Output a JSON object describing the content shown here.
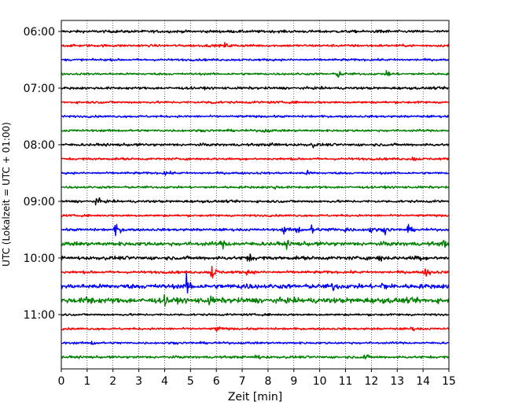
{
  "chart_data": {
    "type": "line",
    "title": "",
    "xlabel": "Zeit  [min]",
    "ylabel": "UTC (Lokalzeit = UTC + 01:00)",
    "xlim": [
      0,
      15
    ],
    "x_ticks": [
      0,
      1,
      2,
      3,
      4,
      5,
      6,
      7,
      8,
      9,
      10,
      11,
      12,
      13,
      14,
      15
    ],
    "x_tick_labels": [
      "0",
      "1",
      "2",
      "3",
      "4",
      "5",
      "6",
      "7",
      "8",
      "9",
      "10",
      "11",
      "12",
      "13",
      "14",
      "15"
    ],
    "y_tick_labels": [
      "06:00",
      "07:00",
      "08:00",
      "09:00",
      "10:00",
      "11:00"
    ],
    "grid": "vertical dotted",
    "colors": [
      "#000000",
      "#ff0000",
      "#0000ff",
      "#008000"
    ],
    "row_interval_minutes": 15,
    "traces": [
      {
        "start": "06:00",
        "color": "#000000",
        "amplitude": 0.3,
        "events": [
          {
            "x": 12.4,
            "amp": 0.6
          }
        ]
      },
      {
        "start": "06:15",
        "color": "#ff0000",
        "amplitude": 0.28,
        "events": [
          {
            "x": 6.3,
            "amp": 0.6
          }
        ]
      },
      {
        "start": "06:30",
        "color": "#0000ff",
        "amplitude": 0.24,
        "events": []
      },
      {
        "start": "06:45",
        "color": "#008000",
        "amplitude": 0.24,
        "events": [
          {
            "x": 10.7,
            "amp": 1.0
          },
          {
            "x": 12.6,
            "amp": 0.8
          }
        ]
      },
      {
        "start": "07:00",
        "color": "#000000",
        "amplitude": 0.28,
        "events": []
      },
      {
        "start": "07:15",
        "color": "#ff0000",
        "amplitude": 0.26,
        "events": [
          {
            "x": 5.8,
            "amp": 0.5
          }
        ]
      },
      {
        "start": "07:30",
        "color": "#0000ff",
        "amplitude": 0.24,
        "events": []
      },
      {
        "start": "07:45",
        "color": "#008000",
        "amplitude": 0.26,
        "events": [
          {
            "x": 7.8,
            "amp": 0.6
          }
        ]
      },
      {
        "start": "08:00",
        "color": "#000000",
        "amplitude": 0.3,
        "events": [
          {
            "x": 8.2,
            "amp": 0.7
          },
          {
            "x": 9.7,
            "amp": 0.5
          }
        ]
      },
      {
        "start": "08:15",
        "color": "#ff0000",
        "amplitude": 0.26,
        "events": [
          {
            "x": 13.6,
            "amp": 0.5
          }
        ]
      },
      {
        "start": "08:30",
        "color": "#0000ff",
        "amplitude": 0.24,
        "events": [
          {
            "x": 4.0,
            "amp": 0.6
          },
          {
            "x": 9.5,
            "amp": 0.5
          }
        ]
      },
      {
        "start": "08:45",
        "color": "#008000",
        "amplitude": 0.26,
        "events": [
          {
            "x": 8.2,
            "amp": 0.5
          }
        ]
      },
      {
        "start": "09:00",
        "color": "#000000",
        "amplitude": 0.28,
        "events": [
          {
            "x": 1.35,
            "amp": 1.0
          }
        ]
      },
      {
        "start": "09:15",
        "color": "#ff0000",
        "amplitude": 0.24,
        "events": []
      },
      {
        "start": "09:30",
        "color": "#0000ff",
        "amplitude": 0.28,
        "events": [
          {
            "x": 2.1,
            "amp": 1.7
          },
          {
            "x": 8.6,
            "amp": 0.9
          },
          {
            "x": 9.1,
            "amp": 1.1
          },
          {
            "x": 9.7,
            "amp": 1.4
          },
          {
            "x": 10.4,
            "amp": 0.8
          },
          {
            "x": 11.0,
            "amp": 0.9
          },
          {
            "x": 11.9,
            "amp": 1.1
          },
          {
            "x": 12.5,
            "amp": 0.9
          },
          {
            "x": 13.4,
            "amp": 0.9
          }
        ]
      },
      {
        "start": "09:45",
        "color": "#008000",
        "amplitude": 0.45,
        "events": [
          {
            "x": 6.2,
            "amp": 1.0
          },
          {
            "x": 8.7,
            "amp": 0.7
          },
          {
            "x": 14.8,
            "amp": 0.9
          }
        ]
      },
      {
        "start": "10:00",
        "color": "#000000",
        "amplitude": 0.4,
        "events": [
          {
            "x": 7.2,
            "amp": 1.1
          },
          {
            "x": 12.3,
            "amp": 0.8
          },
          {
            "x": 13.7,
            "amp": 1.0
          }
        ]
      },
      {
        "start": "10:15",
        "color": "#ff0000",
        "amplitude": 0.3,
        "events": [
          {
            "x": 5.8,
            "amp": 2.2
          },
          {
            "x": 7.2,
            "amp": 0.6
          },
          {
            "x": 14.1,
            "amp": 1.5
          }
        ]
      },
      {
        "start": "10:30",
        "color": "#0000ff",
        "amplitude": 0.5,
        "events": [
          {
            "x": 4.85,
            "amp": 2.4
          },
          {
            "x": 7.0,
            "amp": 1.0
          },
          {
            "x": 10.5,
            "amp": 0.9
          },
          {
            "x": 12.4,
            "amp": 1.1
          }
        ]
      },
      {
        "start": "10:45",
        "color": "#008000",
        "amplitude": 0.6,
        "events": [
          {
            "x": 1.0,
            "amp": 1.3
          },
          {
            "x": 4.0,
            "amp": 0.9
          },
          {
            "x": 5.7,
            "amp": 0.8
          }
        ]
      },
      {
        "start": "11:00",
        "color": "#000000",
        "amplitude": 0.24,
        "events": []
      },
      {
        "start": "11:15",
        "color": "#ff0000",
        "amplitude": 0.24,
        "events": [
          {
            "x": 6.0,
            "amp": 0.7
          },
          {
            "x": 13.5,
            "amp": 0.5
          }
        ]
      },
      {
        "start": "11:30",
        "color": "#0000ff",
        "amplitude": 0.24,
        "events": [
          {
            "x": 1.2,
            "amp": 0.5
          }
        ]
      },
      {
        "start": "11:45",
        "color": "#008000",
        "amplitude": 0.28,
        "events": [
          {
            "x": 7.5,
            "amp": 0.8
          },
          {
            "x": 11.7,
            "amp": 0.6
          }
        ]
      }
    ]
  }
}
